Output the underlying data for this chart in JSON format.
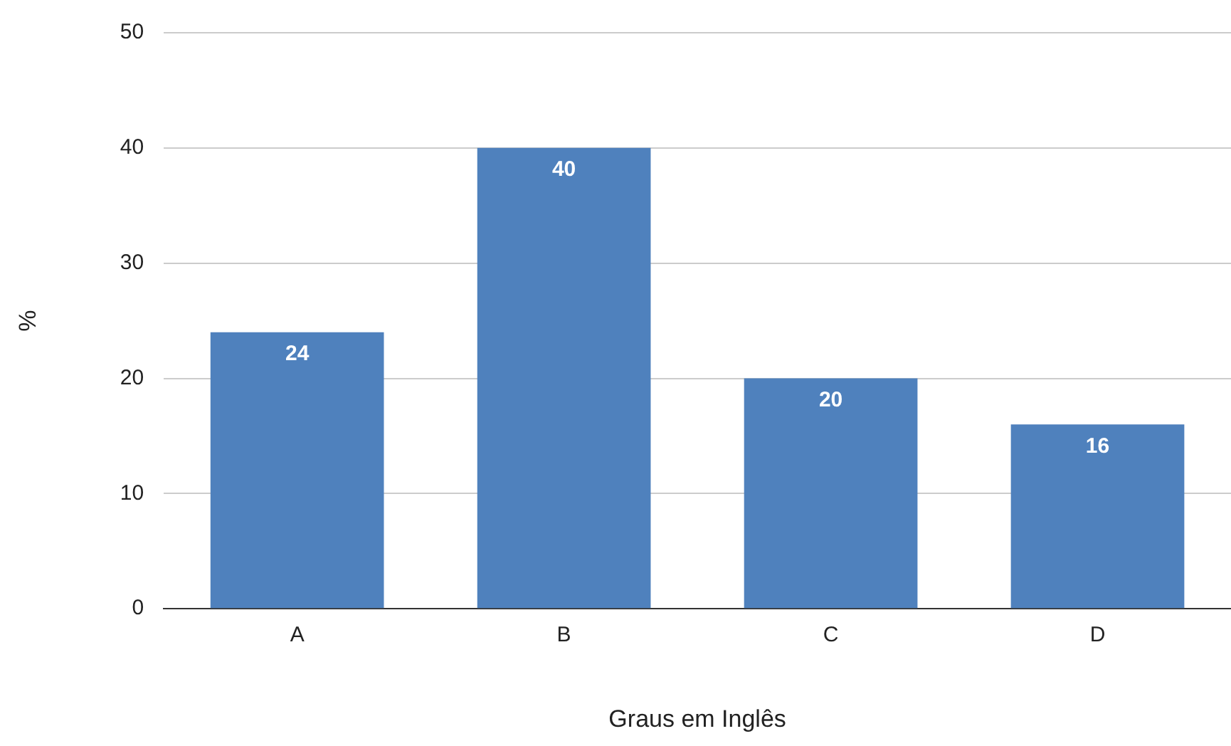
{
  "chart_data": {
    "type": "bar",
    "xlabel": "Graus em Inglês",
    "ylabel": "%",
    "categories": [
      "A",
      "B",
      "C",
      "D"
    ],
    "values": [
      24,
      40,
      20,
      16
    ],
    "color": "#4f81bd",
    "ylim": [
      0,
      50
    ],
    "yticks": [
      0,
      10,
      20,
      30,
      40,
      50
    ],
    "grid": "y",
    "legend": false,
    "data_labels": true
  }
}
